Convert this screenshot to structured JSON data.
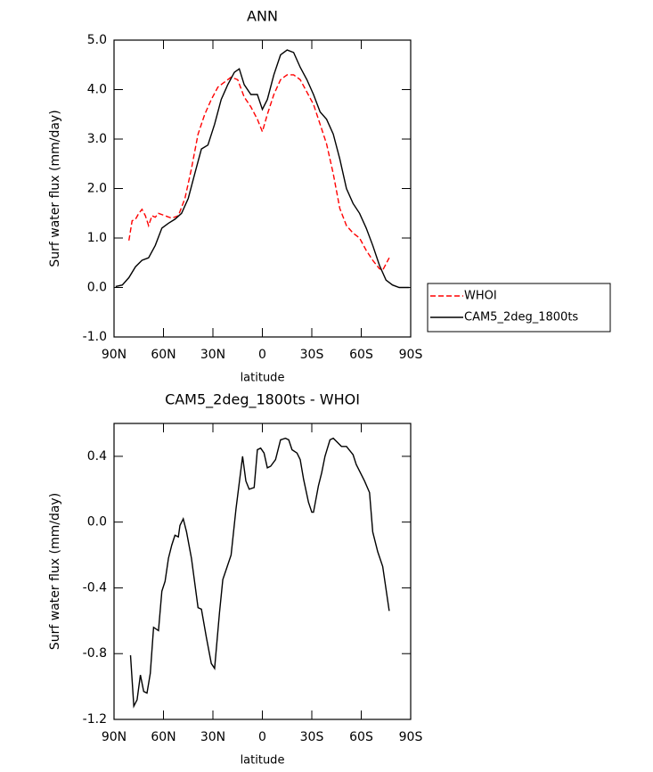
{
  "chart_data": [
    {
      "type": "line",
      "title": "ANN",
      "xlabel": "latitude",
      "ylabel": "Surf water flux (mm/day)",
      "xlim": [
        90,
        -90
      ],
      "xticks": [
        {
          "value": 90,
          "label": "90N"
        },
        {
          "value": 60,
          "label": "60N"
        },
        {
          "value": 30,
          "label": "30N"
        },
        0,
        {
          "value": -30,
          "label": "30S"
        },
        {
          "value": -60,
          "label": "60S"
        },
        {
          "value": -90,
          "label": "90S"
        }
      ],
      "ylim": [
        -1.0,
        5.0
      ],
      "yticks": [
        {
          "value": -1.0,
          "label": "-1.0"
        },
        {
          "value": 0.0,
          "label": "0.0"
        },
        {
          "value": 1.0,
          "label": "1.0"
        },
        {
          "value": 2.0,
          "label": "2.0"
        },
        {
          "value": 3.0,
          "label": "3.0"
        },
        {
          "value": 4.0,
          "label": "4.0"
        },
        {
          "value": 5.0,
          "label": "5.0"
        }
      ],
      "legend": "right",
      "series": [
        {
          "name": "WHOI",
          "color": "#ff0000",
          "style": "dashed",
          "x": [
            81,
            79,
            77,
            75,
            73,
            71,
            69,
            67,
            65,
            63,
            59,
            55,
            51,
            47,
            43,
            39,
            35,
            31,
            27,
            23,
            19,
            15,
            11,
            7,
            3,
            0,
            -3,
            -7,
            -11,
            -15,
            -19,
            -23,
            -27,
            -31,
            -35,
            -39,
            -43,
            -47,
            -51,
            -55,
            -59,
            -63,
            -67,
            -71,
            -73,
            -77
          ],
          "values": [
            0.95,
            1.35,
            1.38,
            1.5,
            1.58,
            1.45,
            1.25,
            1.45,
            1.42,
            1.5,
            1.45,
            1.4,
            1.45,
            1.8,
            2.4,
            3.1,
            3.5,
            3.8,
            4.05,
            4.15,
            4.25,
            4.2,
            3.85,
            3.65,
            3.4,
            3.15,
            3.5,
            3.9,
            4.2,
            4.3,
            4.3,
            4.2,
            3.95,
            3.7,
            3.3,
            2.9,
            2.3,
            1.6,
            1.25,
            1.1,
            1.0,
            0.75,
            0.55,
            0.38,
            0.35,
            0.6
          ]
        },
        {
          "name": "CAM5_2deg_1800ts",
          "color": "#000000",
          "style": "solid",
          "x": [
            89,
            85,
            81,
            77,
            73,
            69,
            65,
            61,
            57,
            53,
            49,
            45,
            41,
            37,
            33,
            29,
            25,
            21,
            17,
            14,
            11,
            7,
            3,
            0,
            -3,
            -7,
            -11,
            -15,
            -19,
            -23,
            -27,
            -31,
            -35,
            -39,
            -43,
            -47,
            -51,
            -55,
            -59,
            -63,
            -67,
            -71,
            -75,
            -79,
            -83,
            -87,
            -89
          ],
          "values": [
            0.02,
            0.05,
            0.2,
            0.42,
            0.55,
            0.6,
            0.85,
            1.2,
            1.3,
            1.38,
            1.5,
            1.8,
            2.3,
            2.8,
            2.88,
            3.3,
            3.8,
            4.1,
            4.35,
            4.42,
            4.1,
            3.9,
            3.9,
            3.6,
            3.8,
            4.3,
            4.7,
            4.8,
            4.75,
            4.45,
            4.2,
            3.9,
            3.55,
            3.4,
            3.1,
            2.6,
            2.0,
            1.7,
            1.5,
            1.2,
            0.85,
            0.45,
            0.15,
            0.05,
            0.0,
            0.0,
            0.0
          ]
        }
      ]
    },
    {
      "type": "line",
      "title": "CAM5_2deg_1800ts - WHOI",
      "xlabel": "latitude",
      "ylabel": "Surf water flux (mm/day)",
      "xlim": [
        90,
        -90
      ],
      "xticks": [
        {
          "value": 90,
          "label": "90N"
        },
        {
          "value": 60,
          "label": "60N"
        },
        {
          "value": 30,
          "label": "30N"
        },
        0,
        {
          "value": -30,
          "label": "30S"
        },
        {
          "value": -60,
          "label": "60S"
        },
        {
          "value": -90,
          "label": "90S"
        }
      ],
      "ylim": [
        -1.2,
        0.6
      ],
      "yticks": [
        -1.2,
        -0.8,
        -0.4,
        {
          "value": 0.0,
          "label": "0.0"
        },
        0.4
      ],
      "series": [
        {
          "color": "#000000",
          "style": "solid",
          "x": [
            80,
            78,
            76,
            74,
            72,
            70,
            68,
            66,
            63,
            61,
            59,
            57,
            55,
            53,
            51,
            50,
            48,
            46,
            43,
            39,
            37,
            34,
            31,
            29,
            26,
            24,
            19,
            16,
            12,
            10,
            8,
            5,
            3,
            1,
            -1,
            -3,
            -5,
            -8,
            -11,
            -14,
            -16,
            -18,
            -21,
            -23,
            -25,
            -28,
            -30,
            -31,
            -34,
            -36,
            -38,
            -41,
            -43,
            -45,
            -48,
            -51,
            -55,
            -57,
            -62,
            -65,
            -67,
            -70,
            -73,
            -77
          ],
          "values": [
            -0.81,
            -1.12,
            -1.08,
            -0.93,
            -1.03,
            -1.04,
            -0.92,
            -0.64,
            -0.66,
            -0.42,
            -0.36,
            -0.22,
            -0.14,
            -0.08,
            -0.09,
            -0.02,
            0.02,
            -0.06,
            -0.22,
            -0.52,
            -0.53,
            -0.7,
            -0.86,
            -0.89,
            -0.55,
            -0.35,
            -0.2,
            0.08,
            0.4,
            0.25,
            0.2,
            0.21,
            0.44,
            0.45,
            0.42,
            0.33,
            0.34,
            0.38,
            0.5,
            0.51,
            0.5,
            0.44,
            0.42,
            0.38,
            0.26,
            0.12,
            0.06,
            0.06,
            0.22,
            0.3,
            0.4,
            0.5,
            0.51,
            0.49,
            0.46,
            0.46,
            0.41,
            0.35,
            0.25,
            0.18,
            -0.06,
            -0.18,
            -0.27,
            -0.54
          ]
        }
      ]
    }
  ]
}
